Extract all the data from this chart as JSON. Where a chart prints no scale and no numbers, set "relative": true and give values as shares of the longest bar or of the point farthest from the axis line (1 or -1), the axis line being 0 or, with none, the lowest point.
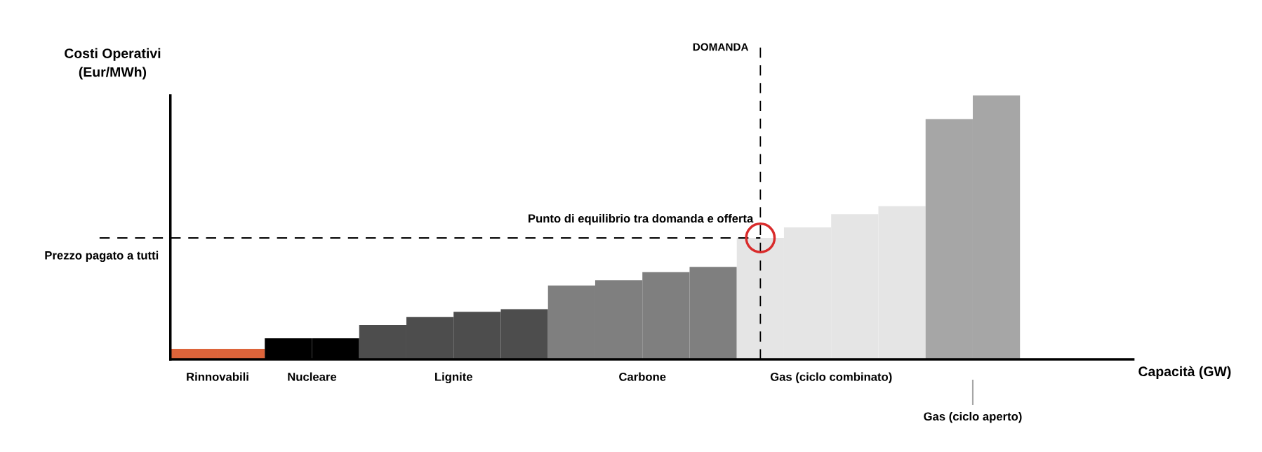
{
  "chart_data": {
    "type": "bar",
    "relative": true,
    "stacked": true,
    "ylabel": "Costi Operativi\n(Eur/MWh)",
    "categories": [
      null,
      null,
      null,
      null,
      null,
      null,
      null,
      null,
      null,
      null,
      null,
      null,
      null,
      null,
      null,
      null,
      null,
      null
    ],
    "series": [
      {
        "name": "Rinnovabili",
        "color": "#dd643a",
        "values": [
          0.04,
          0.04,
          null,
          null,
          null,
          null,
          null,
          null,
          null,
          null,
          null,
          null,
          null,
          null,
          null,
          null,
          null,
          null
        ]
      },
      {
        "name": "Nucleare",
        "color": "#000000",
        "values": [
          null,
          null,
          0.08,
          0.08,
          null,
          null,
          null,
          null,
          null,
          null,
          null,
          null,
          null,
          null,
          null,
          null,
          null,
          null
        ]
      },
      {
        "name": "Lignite",
        "color": "#4d4d4d",
        "values": [
          null,
          null,
          null,
          null,
          0.13,
          0.16,
          0.18,
          0.19,
          null,
          null,
          null,
          null,
          null,
          null,
          null,
          null,
          null,
          null
        ]
      },
      {
        "name": "Carbone",
        "color": "#7f7f7f",
        "values": [
          null,
          null,
          null,
          null,
          null,
          null,
          null,
          null,
          0.28,
          0.3,
          0.33,
          0.35,
          null,
          null,
          null,
          null,
          null,
          null
        ]
      },
      {
        "name": "Gas (ciclo combinato)",
        "color": "#e5e5e5",
        "values": [
          null,
          null,
          null,
          null,
          null,
          null,
          null,
          null,
          null,
          null,
          null,
          null,
          0.46,
          0.5,
          0.55,
          0.58,
          null,
          null
        ]
      },
      {
        "name": "Gas (ciclo aperto)",
        "color": "#a6a6a6",
        "values": [
          null,
          null,
          null,
          null,
          null,
          null,
          null,
          null,
          null,
          null,
          null,
          null,
          null,
          null,
          null,
          null,
          0.91,
          1.0
        ]
      }
    ],
    "ref_lines": [
      {
        "axis": "y",
        "value": 0.46,
        "label": "Prezzo pagato a tutti",
        "color": "#000000",
        "line_style": "dashed"
      },
      {
        "axis": "x",
        "label": "DOMANDA",
        "color": "#000000",
        "line_style": "dashed"
      }
    ],
    "annotations": [
      "Punto di equilibrio tra domanda e offerta",
      "Capacità (GW)"
    ]
  }
}
